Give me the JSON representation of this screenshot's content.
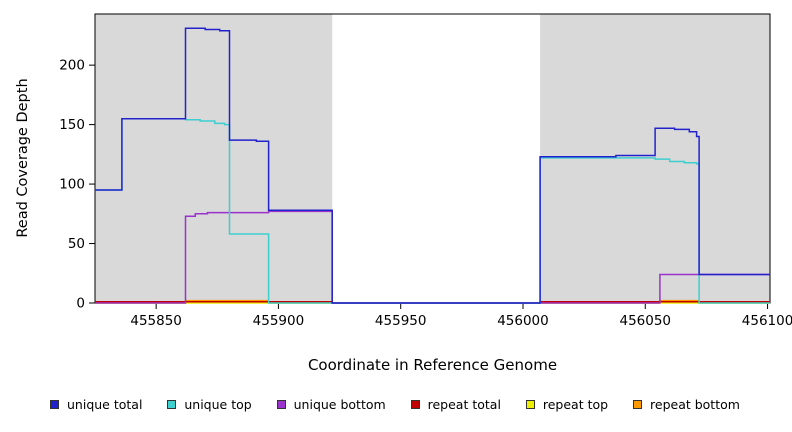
{
  "chart_data": {
    "type": "line",
    "title": "",
    "xlabel": "Coordinate in Reference Genome",
    "ylabel": "Read Coverage Depth",
    "xlim": [
      455825,
      456101
    ],
    "ylim": [
      0,
      243
    ],
    "x_ticks": [
      455850,
      455900,
      455950,
      456000,
      456050,
      456100
    ],
    "y_ticks": [
      0,
      50,
      100,
      150,
      200
    ],
    "grid": false,
    "legend_position": "bottom",
    "panel_background": "#ffffff",
    "shaded_regions": [
      {
        "x0": 455825,
        "x1": 455922,
        "color": "#d9d9d9"
      },
      {
        "x0": 456007,
        "x1": 456101,
        "color": "#d9d9d9"
      }
    ],
    "series": [
      {
        "name": "unique total",
        "color": "#2222cc",
        "steps": [
          [
            455825,
            95
          ],
          [
            455836,
            155
          ],
          [
            455862,
            231
          ],
          [
            455870,
            230
          ],
          [
            455876,
            229
          ],
          [
            455880,
            137
          ],
          [
            455891,
            136
          ],
          [
            455896,
            78
          ],
          [
            455922,
            0
          ],
          [
            456007,
            123
          ],
          [
            456038,
            124
          ],
          [
            456054,
            147
          ],
          [
            456062,
            146
          ],
          [
            456068,
            144
          ],
          [
            456071,
            140
          ],
          [
            456072,
            24
          ],
          [
            456101,
            24
          ]
        ]
      },
      {
        "name": "unique top",
        "color": "#3ecfcf",
        "steps": [
          [
            455825,
            95
          ],
          [
            455836,
            155
          ],
          [
            455862,
            154
          ],
          [
            455868,
            153
          ],
          [
            455874,
            151
          ],
          [
            455878,
            150
          ],
          [
            455880,
            58
          ],
          [
            455896,
            0
          ],
          [
            456007,
            122
          ],
          [
            456044,
            122
          ],
          [
            456054,
            121
          ],
          [
            456060,
            119
          ],
          [
            456066,
            118
          ],
          [
            456071,
            117
          ],
          [
            456072,
            0
          ],
          [
            456101,
            0
          ]
        ]
      },
      {
        "name": "unique bottom",
        "color": "#9933cc",
        "steps": [
          [
            455825,
            0
          ],
          [
            455862,
            73
          ],
          [
            455866,
            75
          ],
          [
            455871,
            76
          ],
          [
            455896,
            77
          ],
          [
            455922,
            0
          ],
          [
            456056,
            24
          ],
          [
            456101,
            24
          ]
        ]
      },
      {
        "name": "repeat total",
        "color": "#c00000",
        "steps": [
          [
            455825,
            1
          ],
          [
            455922,
            0
          ],
          [
            456007,
            1
          ],
          [
            456101,
            1
          ]
        ]
      },
      {
        "name": "repeat top",
        "color": "#eeee00",
        "steps": [
          [
            455825,
            0
          ],
          [
            456101,
            0
          ]
        ]
      },
      {
        "name": "repeat bottom",
        "color": "#ff9900",
        "steps": [
          [
            455825,
            0
          ],
          [
            455862,
            2
          ],
          [
            455896,
            0
          ],
          [
            456056,
            2
          ],
          [
            456072,
            0
          ],
          [
            456101,
            0
          ]
        ]
      }
    ],
    "legend": [
      {
        "label": "unique total",
        "color": "#2222cc"
      },
      {
        "label": "unique top",
        "color": "#3ecfcf"
      },
      {
        "label": "unique bottom",
        "color": "#9933cc"
      },
      {
        "label": "repeat total",
        "color": "#c00000"
      },
      {
        "label": "repeat top",
        "color": "#eeee00"
      },
      {
        "label": "repeat bottom",
        "color": "#ff9900"
      }
    ]
  }
}
